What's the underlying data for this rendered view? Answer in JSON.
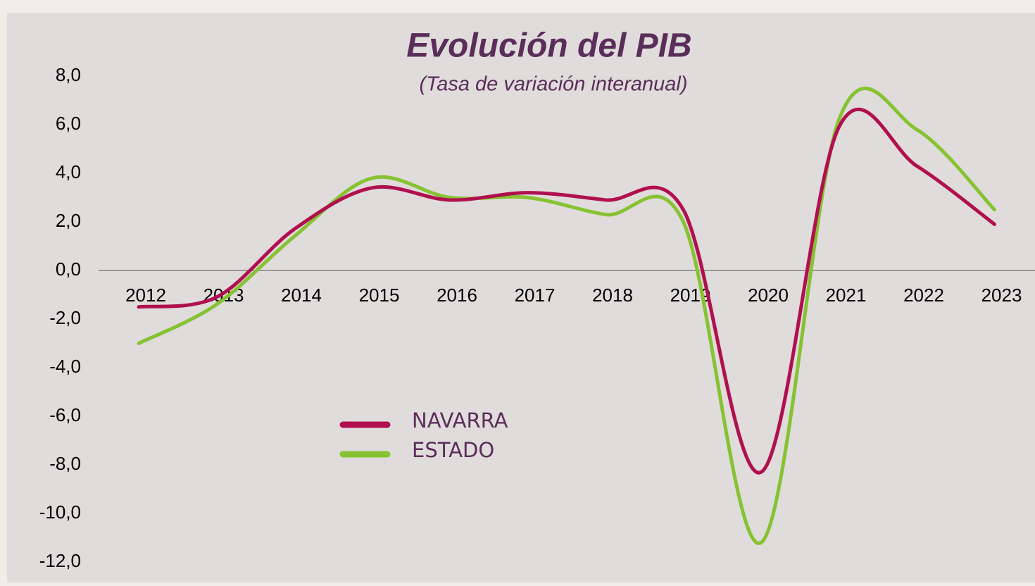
{
  "chart_data": {
    "type": "line",
    "title": "Evolución del PIB",
    "subtitle": "(Tasa de variación interanual)",
    "categories": [
      "2012",
      "2013",
      "2014",
      "2015",
      "2016",
      "2017",
      "2018",
      "2019",
      "2020",
      "2021",
      "2022",
      "2023"
    ],
    "series": [
      {
        "name": "NAVARRA",
        "color": "#b0104f",
        "values": [
          -1.5,
          -1.1,
          1.7,
          3.4,
          2.9,
          3.2,
          2.9,
          2.5,
          -8.3,
          5.9,
          4.3,
          1.9
        ]
      },
      {
        "name": "ESTADO",
        "color": "#86c232",
        "values": [
          -3.0,
          -1.4,
          1.4,
          3.8,
          3.0,
          3.0,
          2.3,
          2.0,
          -11.2,
          6.2,
          5.8,
          2.5
        ]
      }
    ],
    "ylim": [
      -12,
      8
    ],
    "yticks": [
      {
        "value": 8,
        "label": "8,0"
      },
      {
        "value": 6,
        "label": "6,0"
      },
      {
        "value": 4,
        "label": "4,0"
      },
      {
        "value": 2,
        "label": "2,0"
      },
      {
        "value": 0,
        "label": "0,0"
      },
      {
        "value": -2,
        "label": "-2,0"
      },
      {
        "value": -4,
        "label": "-4,0"
      },
      {
        "value": -6,
        "label": "-6,0"
      },
      {
        "value": -8,
        "label": "-8,0"
      },
      {
        "value": -10,
        "label": "-10,0"
      },
      {
        "value": -12,
        "label": "-12,0"
      }
    ]
  }
}
